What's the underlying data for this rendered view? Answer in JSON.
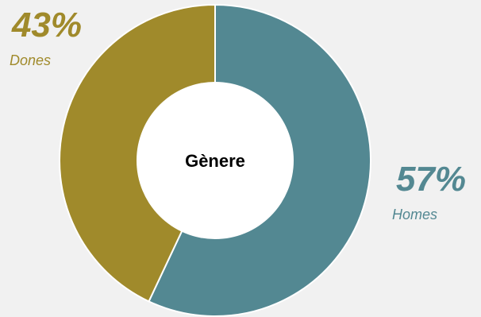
{
  "chart_data": {
    "type": "pie",
    "title": "Gènere",
    "slices": [
      {
        "label": "Homes",
        "value": 57,
        "value_label": "57%",
        "color": "#538892"
      },
      {
        "label": "Dones",
        "value": 43,
        "value_label": "43%",
        "color": "#a08a2b"
      }
    ],
    "colors": {
      "background": "#f1f1f1",
      "center": "#ffffff",
      "separator": "#ffffff"
    }
  }
}
